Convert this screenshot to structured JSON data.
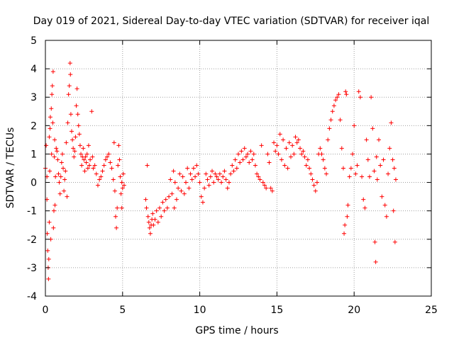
{
  "chart_data": {
    "type": "scatter",
    "title": "Day 019 of 2021, Sidereal Day-to-day VTEC variation (SDTVAR) for receiver iqal",
    "xlabel": "GPS time / hours",
    "ylabel": "SDTVAR / TECUs",
    "xlim": [
      0,
      25
    ],
    "ylim": [
      -4,
      5
    ],
    "x_ticks": [
      0,
      5,
      10,
      15,
      20,
      25
    ],
    "y_ticks": [
      -4,
      -3,
      -2,
      -1,
      0,
      1,
      2,
      3,
      4,
      5
    ],
    "x_tick_labels": [
      "0",
      "5",
      "10",
      "15",
      "20",
      "25"
    ],
    "y_tick_labels": [
      "-4",
      "-3",
      "-2",
      "-1",
      "0",
      "1",
      "2",
      "3",
      "4",
      "5"
    ],
    "grid": true,
    "marker": "+",
    "color": "#ff0000",
    "series": [
      {
        "name": "SDTVAR",
        "points": [
          [
            0.0,
            0.5
          ],
          [
            0.05,
            1.3
          ],
          [
            0.1,
            0.2
          ],
          [
            0.1,
            -0.6
          ],
          [
            0.12,
            -1.8
          ],
          [
            0.15,
            -2.4
          ],
          [
            0.18,
            -3.0
          ],
          [
            0.2,
            -3.4
          ],
          [
            0.22,
            -2.7
          ],
          [
            0.25,
            -1.4
          ],
          [
            0.25,
            1.6
          ],
          [
            0.28,
            0.4
          ],
          [
            0.3,
            1.9
          ],
          [
            0.32,
            2.3
          ],
          [
            0.35,
            -2.0
          ],
          [
            0.38,
            2.6
          ],
          [
            0.4,
            1.0
          ],
          [
            0.42,
            3.1
          ],
          [
            0.45,
            3.4
          ],
          [
            0.48,
            2.1
          ],
          [
            0.5,
            3.9
          ],
          [
            0.52,
            -1.6
          ],
          [
            0.55,
            -1.0
          ],
          [
            0.58,
            0.9
          ],
          [
            0.6,
            1.5
          ],
          [
            0.62,
            -0.8
          ],
          [
            0.65,
            0.2
          ],
          [
            0.7,
            1.2
          ],
          [
            0.75,
            1.1
          ],
          [
            0.8,
            0.8
          ],
          [
            0.85,
            0.3
          ],
          [
            0.9,
            0.0
          ],
          [
            0.95,
            -0.4
          ],
          [
            1.0,
            0.2
          ],
          [
            1.05,
            0.7
          ],
          [
            1.1,
            1.0
          ],
          [
            1.15,
            0.5
          ],
          [
            1.2,
            -0.3
          ],
          [
            1.25,
            0.1
          ],
          [
            1.3,
            0.4
          ],
          [
            1.35,
            1.4
          ],
          [
            1.4,
            -0.5
          ],
          [
            1.45,
            2.1
          ],
          [
            1.5,
            3.1
          ],
          [
            1.55,
            3.4
          ],
          [
            1.6,
            4.2
          ],
          [
            1.62,
            3.8
          ],
          [
            1.65,
            2.4
          ],
          [
            1.7,
            1.8
          ],
          [
            1.75,
            1.5
          ],
          [
            1.8,
            1.2
          ],
          [
            1.85,
            0.9
          ],
          [
            1.9,
            1.1
          ],
          [
            1.95,
            1.6
          ],
          [
            2.0,
            2.7
          ],
          [
            2.05,
            3.3
          ],
          [
            2.1,
            2.4
          ],
          [
            2.15,
            2.0
          ],
          [
            2.2,
            1.7
          ],
          [
            2.25,
            1.3
          ],
          [
            2.3,
            1.0
          ],
          [
            2.35,
            0.6
          ],
          [
            2.4,
            0.9
          ],
          [
            2.45,
            1.2
          ],
          [
            2.5,
            0.8
          ],
          [
            2.55,
            0.4
          ],
          [
            2.6,
            0.9
          ],
          [
            2.65,
            0.7
          ],
          [
            2.7,
            1.0
          ],
          [
            2.75,
            0.5
          ],
          [
            2.8,
            1.3
          ],
          [
            2.85,
            0.6
          ],
          [
            2.9,
            0.8
          ],
          [
            3.0,
            2.5
          ],
          [
            3.05,
            0.9
          ],
          [
            3.1,
            0.5
          ],
          [
            3.2,
            0.6
          ],
          [
            3.3,
            0.3
          ],
          [
            3.4,
            -0.1
          ],
          [
            3.5,
            0.1
          ],
          [
            3.6,
            0.2
          ],
          [
            3.7,
            0.4
          ],
          [
            3.8,
            0.6
          ],
          [
            3.9,
            0.8
          ],
          [
            4.0,
            0.9
          ],
          [
            4.1,
            1.0
          ],
          [
            4.2,
            0.7
          ],
          [
            4.3,
            0.5
          ],
          [
            4.4,
            0.1
          ],
          [
            4.45,
            1.4
          ],
          [
            4.5,
            -0.3
          ],
          [
            4.55,
            -1.2
          ],
          [
            4.6,
            -1.6
          ],
          [
            4.65,
            -0.9
          ],
          [
            4.7,
            0.6
          ],
          [
            4.75,
            1.3
          ],
          [
            4.8,
            0.8
          ],
          [
            4.85,
            0.2
          ],
          [
            4.9,
            -0.4
          ],
          [
            4.95,
            0.0
          ],
          [
            5.0,
            -0.2
          ],
          [
            5.05,
            0.3
          ],
          [
            5.1,
            -0.1
          ],
          [
            4.95,
            -0.9
          ],
          [
            6.5,
            -0.6
          ],
          [
            6.55,
            -0.9
          ],
          [
            6.6,
            0.6
          ],
          [
            6.65,
            -1.2
          ],
          [
            6.7,
            -1.4
          ],
          [
            6.75,
            -1.6
          ],
          [
            6.8,
            -1.8
          ],
          [
            6.85,
            -1.5
          ],
          [
            6.9,
            -1.3
          ],
          [
            6.95,
            -1.1
          ],
          [
            7.0,
            -1.5
          ],
          [
            7.1,
            -1.3
          ],
          [
            7.2,
            -1.0
          ],
          [
            7.3,
            -1.4
          ],
          [
            7.4,
            -0.9
          ],
          [
            7.5,
            -1.2
          ],
          [
            7.6,
            -0.7
          ],
          [
            7.7,
            -1.0
          ],
          [
            7.8,
            -0.6
          ],
          [
            7.9,
            -0.9
          ],
          [
            8.0,
            -0.5
          ],
          [
            8.1,
            0.1
          ],
          [
            8.2,
            -0.4
          ],
          [
            8.3,
            0.4
          ],
          [
            8.35,
            -0.9
          ],
          [
            8.4,
            0.0
          ],
          [
            8.5,
            -0.6
          ],
          [
            8.6,
            -0.2
          ],
          [
            8.7,
            0.3
          ],
          [
            8.8,
            -0.3
          ],
          [
            8.9,
            0.2
          ],
          [
            9.0,
            -0.4
          ],
          [
            9.1,
            0.0
          ],
          [
            9.2,
            0.5
          ],
          [
            9.3,
            -0.2
          ],
          [
            9.4,
            0.3
          ],
          [
            9.5,
            0.1
          ],
          [
            9.6,
            0.5
          ],
          [
            9.7,
            0.2
          ],
          [
            9.8,
            0.6
          ],
          [
            9.9,
            0.3
          ],
          [
            10.0,
            0.0
          ],
          [
            10.1,
            -0.5
          ],
          [
            10.2,
            -0.7
          ],
          [
            10.3,
            -0.2
          ],
          [
            10.4,
            0.3
          ],
          [
            10.5,
            0.1
          ],
          [
            10.6,
            -0.1
          ],
          [
            10.7,
            0.2
          ],
          [
            10.8,
            0.4
          ],
          [
            10.9,
            0.0
          ],
          [
            11.0,
            0.3
          ],
          [
            11.1,
            0.2
          ],
          [
            11.2,
            0.1
          ],
          [
            11.3,
            0.3
          ],
          [
            11.4,
            0.0
          ],
          [
            11.5,
            0.2
          ],
          [
            11.6,
            0.4
          ],
          [
            11.7,
            0.1
          ],
          [
            11.8,
            -0.2
          ],
          [
            11.9,
            0.0
          ],
          [
            12.0,
            0.3
          ],
          [
            12.1,
            0.6
          ],
          [
            12.2,
            0.4
          ],
          [
            12.3,
            0.8
          ],
          [
            12.4,
            0.5
          ],
          [
            12.5,
            1.0
          ],
          [
            12.6,
            0.7
          ],
          [
            12.7,
            1.1
          ],
          [
            12.8,
            0.8
          ],
          [
            12.9,
            1.2
          ],
          [
            13.0,
            0.9
          ],
          [
            13.1,
            1.0
          ],
          [
            13.2,
            0.7
          ],
          [
            13.3,
            1.1
          ],
          [
            13.4,
            0.8
          ],
          [
            13.5,
            1.0
          ],
          [
            13.6,
            0.6
          ],
          [
            13.7,
            0.3
          ],
          [
            13.8,
            0.2
          ],
          [
            13.9,
            0.1
          ],
          [
            14.0,
            1.3
          ],
          [
            14.1,
            0.0
          ],
          [
            14.2,
            -0.1
          ],
          [
            14.3,
            -0.2
          ],
          [
            14.4,
            1.0
          ],
          [
            14.5,
            0.7
          ],
          [
            14.6,
            -0.2
          ],
          [
            14.7,
            -0.3
          ],
          [
            14.8,
            1.4
          ],
          [
            14.9,
            1.1
          ],
          [
            15.0,
            1.3
          ],
          [
            15.1,
            1.0
          ],
          [
            15.2,
            1.7
          ],
          [
            15.3,
            0.8
          ],
          [
            15.4,
            1.5
          ],
          [
            15.5,
            0.6
          ],
          [
            15.6,
            1.2
          ],
          [
            15.7,
            0.5
          ],
          [
            15.8,
            1.4
          ],
          [
            15.9,
            0.9
          ],
          [
            16.0,
            1.3
          ],
          [
            16.1,
            1.0
          ],
          [
            16.2,
            1.6
          ],
          [
            16.3,
            1.4
          ],
          [
            16.4,
            1.5
          ],
          [
            16.5,
            1.2
          ],
          [
            16.6,
            1.0
          ],
          [
            16.7,
            1.1
          ],
          [
            16.8,
            0.9
          ],
          [
            16.9,
            0.6
          ],
          [
            17.0,
            0.8
          ],
          [
            17.1,
            0.5
          ],
          [
            17.2,
            0.3
          ],
          [
            17.3,
            0.1
          ],
          [
            17.4,
            -0.1
          ],
          [
            17.5,
            -0.3
          ],
          [
            17.6,
            0.0
          ],
          [
            17.7,
            1.0
          ],
          [
            17.8,
            1.2
          ],
          [
            17.9,
            1.0
          ],
          [
            18.0,
            0.8
          ],
          [
            18.1,
            0.5
          ],
          [
            18.2,
            0.3
          ],
          [
            18.3,
            1.5
          ],
          [
            18.4,
            1.9
          ],
          [
            18.5,
            2.2
          ],
          [
            18.6,
            2.5
          ],
          [
            18.7,
            2.7
          ],
          [
            18.8,
            2.9
          ],
          [
            18.9,
            3.0
          ],
          [
            19.0,
            3.1
          ],
          [
            19.1,
            2.2
          ],
          [
            19.2,
            1.2
          ],
          [
            19.3,
            0.5
          ],
          [
            19.35,
            -1.8
          ],
          [
            19.4,
            -1.5
          ],
          [
            19.45,
            3.2
          ],
          [
            19.5,
            3.1
          ],
          [
            19.55,
            -1.2
          ],
          [
            19.6,
            -0.8
          ],
          [
            19.7,
            0.2
          ],
          [
            19.8,
            0.5
          ],
          [
            19.9,
            1.0
          ],
          [
            20.0,
            2.0
          ],
          [
            20.1,
            0.3
          ],
          [
            20.2,
            0.6
          ],
          [
            20.3,
            3.2
          ],
          [
            20.4,
            3.0
          ],
          [
            20.5,
            0.2
          ],
          [
            20.6,
            -0.6
          ],
          [
            20.7,
            -0.9
          ],
          [
            20.8,
            1.5
          ],
          [
            20.9,
            0.8
          ],
          [
            21.0,
            0.2
          ],
          [
            21.1,
            3.0
          ],
          [
            21.2,
            1.9
          ],
          [
            21.3,
            0.4
          ],
          [
            21.35,
            -2.1
          ],
          [
            21.4,
            -2.8
          ],
          [
            21.45,
            0.9
          ],
          [
            21.5,
            0.1
          ],
          [
            21.6,
            1.5
          ],
          [
            21.7,
            0.6
          ],
          [
            21.8,
            -0.5
          ],
          [
            21.9,
            0.8
          ],
          [
            22.0,
            -0.8
          ],
          [
            22.1,
            -1.2
          ],
          [
            22.2,
            0.3
          ],
          [
            22.3,
            1.2
          ],
          [
            22.4,
            2.1
          ],
          [
            22.5,
            0.8
          ],
          [
            22.55,
            -1.0
          ],
          [
            22.6,
            0.5
          ],
          [
            22.65,
            -2.1
          ],
          [
            22.7,
            0.1
          ]
        ]
      }
    ]
  }
}
